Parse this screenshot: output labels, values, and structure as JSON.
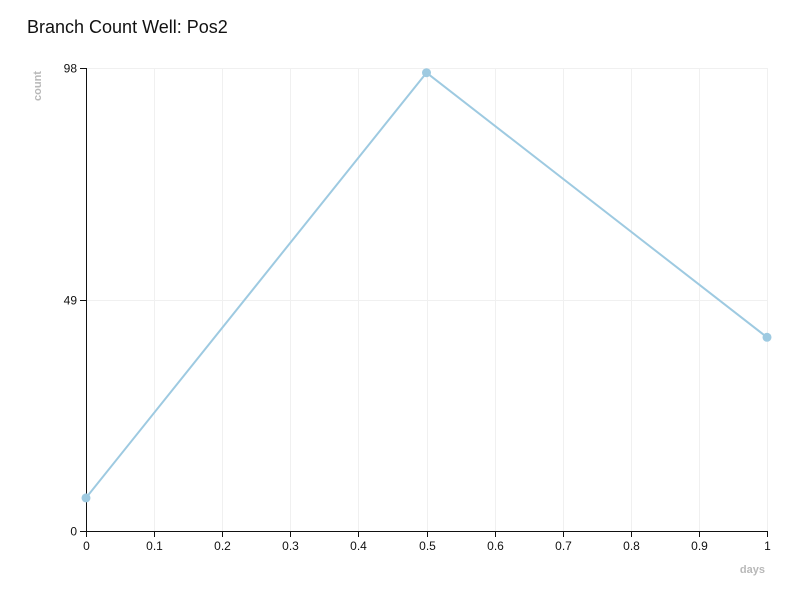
{
  "chart_data": {
    "type": "line",
    "title": "Branch Count Well: Pos2",
    "xlabel": "days",
    "ylabel": "count",
    "xlim": [
      0,
      1
    ],
    "ylim": [
      0,
      98
    ],
    "x_ticks": [
      0,
      0.1,
      0.2,
      0.3,
      0.4,
      0.5,
      0.6,
      0.7,
      0.8,
      0.9,
      1
    ],
    "x_tick_labels": [
      "0",
      "0.1",
      "0.2",
      "0.3",
      "0.4",
      "0.5",
      "0.6",
      "0.7",
      "0.8",
      "0.9",
      "1"
    ],
    "y_ticks": [
      0,
      49,
      98
    ],
    "y_tick_labels": [
      "0",
      "49",
      "98"
    ],
    "grid": true,
    "series": [
      {
        "x": [
          0,
          0.5,
          1
        ],
        "values": [
          7,
          97,
          41
        ],
        "color": "#9ecae1"
      }
    ]
  },
  "colors": {
    "line": "#9ecae1",
    "grid": "#f0f0f0",
    "axis": "#111111",
    "axis_title": "#b8b8b8"
  }
}
